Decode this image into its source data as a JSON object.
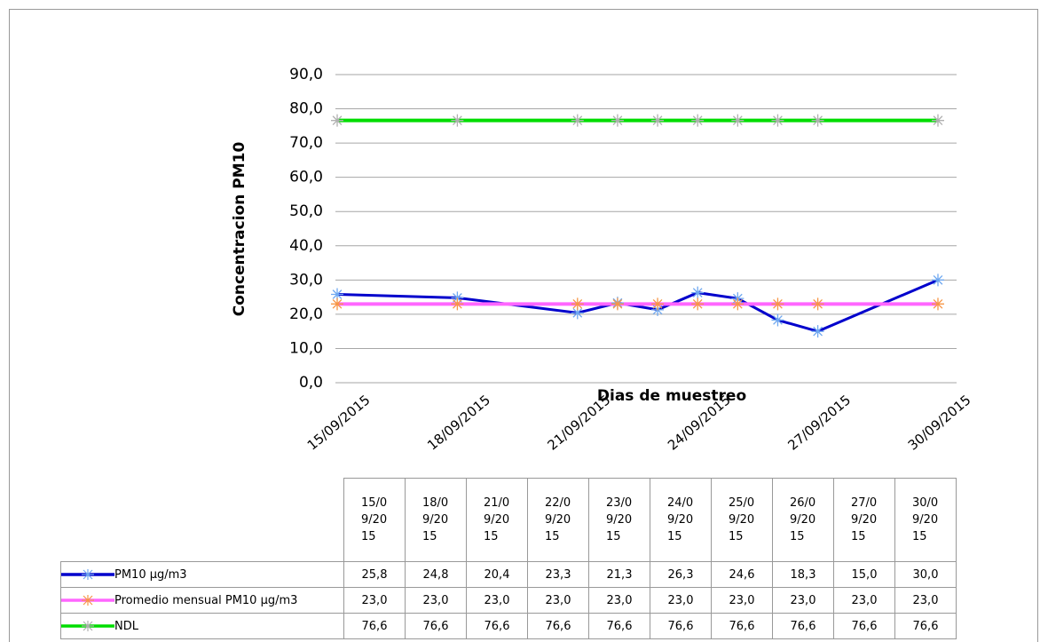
{
  "chart_data": {
    "type": "line",
    "y_label": "Concentracion  PM10",
    "x_label": "Dias de muestreo",
    "x": [
      "15/09/2015",
      "18/09/2015",
      "21/09/2015",
      "22/09/2015",
      "23/09/2015",
      "24/09/2015",
      "25/09/2015",
      "26/09/2015",
      "27/09/2015",
      "30/09/2015"
    ],
    "xlim": [
      "15/09/2015",
      "30/09/2015"
    ],
    "xticks": [
      "15/09/2015",
      "18/09/2015",
      "21/09/2015",
      "24/09/2015",
      "27/09/2015",
      "30/09/2015"
    ],
    "ylim": [
      0,
      90
    ],
    "yticks": [
      {
        "value": 0,
        "label": "0,0"
      },
      {
        "value": 10,
        "label": "10,0"
      },
      {
        "value": 20,
        "label": "20,0"
      },
      {
        "value": 30,
        "label": "30,0"
      },
      {
        "value": 40,
        "label": "40,0"
      },
      {
        "value": 50,
        "label": "50,0"
      },
      {
        "value": 60,
        "label": "60,0"
      },
      {
        "value": 70,
        "label": "70,0"
      },
      {
        "value": 80,
        "label": "80,0"
      },
      {
        "value": 90,
        "label": "90,0"
      }
    ],
    "grid": true,
    "series": [
      {
        "name": "PM10 µg/m3",
        "color": "#0000cc",
        "marker_color": "#6fa8f0",
        "values": [
          25.8,
          24.8,
          20.4,
          23.3,
          21.3,
          26.3,
          24.6,
          18.3,
          15.0,
          30.0
        ],
        "value_labels": [
          "25,8",
          "24,8",
          "20,4",
          "23,3",
          "21,3",
          "26,3",
          "24,6",
          "18,3",
          "15,0",
          "30,0"
        ]
      },
      {
        "name": "Promedio mensual PM10 µg/m3",
        "color": "#ff66ff",
        "marker_color": "#f79646",
        "values": [
          23.0,
          23.0,
          23.0,
          23.0,
          23.0,
          23.0,
          23.0,
          23.0,
          23.0,
          23.0
        ],
        "value_labels": [
          "23,0",
          "23,0",
          "23,0",
          "23,0",
          "23,0",
          "23,0",
          "23,0",
          "23,0",
          "23,0",
          "23,0"
        ]
      },
      {
        "name": "NDL",
        "color": "#00dd00",
        "marker_color": "#b0b0b0",
        "values": [
          76.6,
          76.6,
          76.6,
          76.6,
          76.6,
          76.6,
          76.6,
          76.6,
          76.6,
          76.6
        ],
        "value_labels": [
          "76,6",
          "76,6",
          "76,6",
          "76,6",
          "76,6",
          "76,6",
          "76,6",
          "76,6",
          "76,6",
          "76,6"
        ]
      }
    ]
  }
}
